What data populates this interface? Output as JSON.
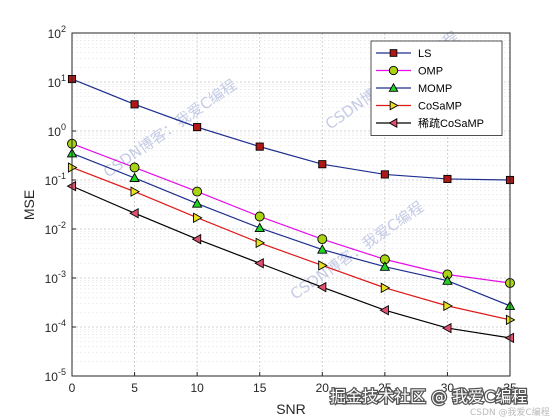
{
  "chart_data": {
    "type": "line",
    "xlabel": "SNR",
    "ylabel": "MSE",
    "xlim": [
      0,
      35
    ],
    "ylim": [
      1e-05,
      100
    ],
    "yscale": "log",
    "grid": true,
    "legend_position": "top-right",
    "x": [
      0,
      5,
      10,
      15,
      20,
      25,
      30,
      35
    ],
    "x_ticks": [
      "0",
      "5",
      "10",
      "15",
      "20",
      "25",
      "30",
      "35"
    ],
    "y_ticks": [
      {
        "base": "10",
        "exp": "-5",
        "value": 1e-05
      },
      {
        "base": "10",
        "exp": "-4",
        "value": 0.0001
      },
      {
        "base": "10",
        "exp": "-3",
        "value": 0.001
      },
      {
        "base": "10",
        "exp": "-2",
        "value": 0.01
      },
      {
        "base": "10",
        "exp": "-1",
        "value": 0.1
      },
      {
        "base": "10",
        "exp": "0",
        "value": 1
      },
      {
        "base": "10",
        "exp": "1",
        "value": 10
      },
      {
        "base": "10",
        "exp": "2",
        "value": 100
      }
    ],
    "series": [
      {
        "name": "LS",
        "color": "#1f2f8f",
        "marker": "square",
        "marker_color": "#b01818",
        "values": [
          11.5,
          3.5,
          1.2,
          0.48,
          0.21,
          0.13,
          0.105,
          0.1
        ]
      },
      {
        "name": "OMP",
        "color": "#e60ee6",
        "marker": "circle",
        "marker_color": "#a8d414",
        "values": [
          0.55,
          0.18,
          0.058,
          0.018,
          0.0062,
          0.0024,
          0.00118,
          0.00079
        ]
      },
      {
        "name": "MOMP",
        "color": "#1f2f8f",
        "marker": "triangle-up",
        "marker_color": "#22d422",
        "values": [
          0.35,
          0.11,
          0.033,
          0.0105,
          0.0038,
          0.0017,
          0.00088,
          0.00027
        ]
      },
      {
        "name": "CoSaMP",
        "color": "#e01818",
        "marker": "triangle-right",
        "marker_color": "#e8e020",
        "values": [
          0.18,
          0.058,
          0.017,
          0.0052,
          0.0018,
          0.00063,
          0.00027,
          0.00014
        ]
      },
      {
        "name": "稀疏CoSaMP",
        "color": "#000000",
        "marker": "triangle-left",
        "marker_color": "#e0506e",
        "values": [
          0.075,
          0.021,
          0.0062,
          0.002,
          0.00065,
          0.00022,
          9.5e-05,
          6e-05
        ]
      }
    ]
  },
  "watermarks": [
    "CSDN博客：我爱C编程",
    "CSDN博客：我爱C编程",
    "CSDN博客：我爱C编程"
  ],
  "footer": {
    "main": "掘金技术社区 @ 我爱C编程",
    "small": "CSDN @我爱C编程"
  }
}
